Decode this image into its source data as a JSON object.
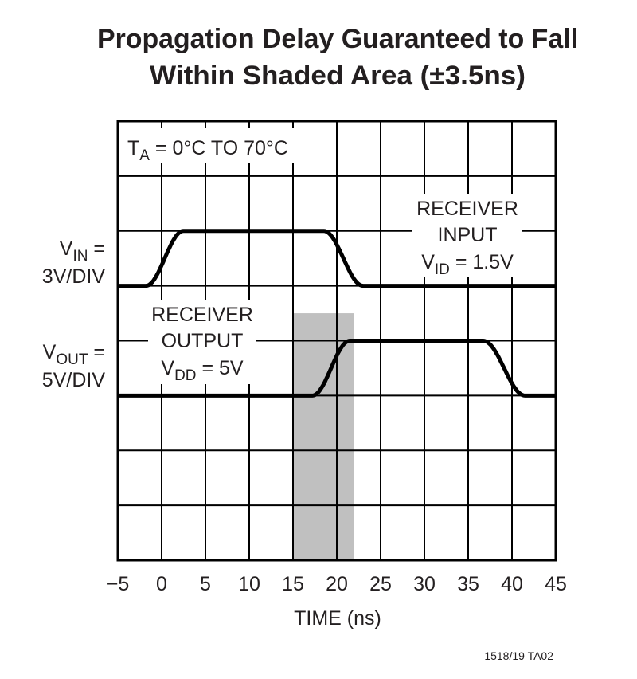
{
  "chart_data": {
    "type": "line",
    "title": [
      "Propagation Delay Guaranteed to Fall",
      "Within Shaded Area (±3.5ns)"
    ],
    "xlabel": "TIME (ns)",
    "xlim": [
      -5,
      45
    ],
    "xticks": [
      "−5",
      "0",
      "5",
      "10",
      "15",
      "20",
      "25",
      "30",
      "35",
      "40",
      "45"
    ],
    "ylim_divisions": [
      0,
      8
    ],
    "grid": true,
    "annotation_temp": {
      "t": "T",
      "sub": "A",
      "rest": " = 0°C TO 70°C"
    },
    "series": [
      {
        "name": "RECEIVER INPUT",
        "label_lines": [
          "RECEIVER",
          "INPUT"
        ],
        "cond": {
          "v": "V",
          "sub": "ID",
          "rest": " = 1.5V"
        },
        "axis_label": {
          "v": "V",
          "sub": "IN",
          "rest": " =",
          "line2": "3V/DIV"
        },
        "low_div": 5,
        "high_div": 6,
        "x": [
          -5,
          -1.8,
          2.5,
          18.5,
          23,
          45
        ],
        "level": [
          "low",
          "low",
          "high",
          "high",
          "low",
          "low"
        ]
      },
      {
        "name": "RECEIVER OUTPUT",
        "label_lines": [
          "RECEIVER",
          "OUTPUT"
        ],
        "cond": {
          "v": "V",
          "sub": "DD",
          "rest": " = 5V"
        },
        "axis_label": {
          "v": "V",
          "sub": "OUT",
          "rest": " =",
          "line2": "5V/DIV"
        },
        "low_div": 3,
        "high_div": 4,
        "x": [
          -5,
          17.2,
          21.5,
          36.7,
          41.5,
          45
        ],
        "level": [
          "low",
          "low",
          "high",
          "high",
          "low",
          "low"
        ]
      }
    ],
    "shaded_region": {
      "x": [
        15,
        22
      ],
      "top_div": 4.5,
      "color": "#c0c0c0"
    },
    "line_color": "#000000"
  },
  "figure_code": "1518/19 TA02"
}
